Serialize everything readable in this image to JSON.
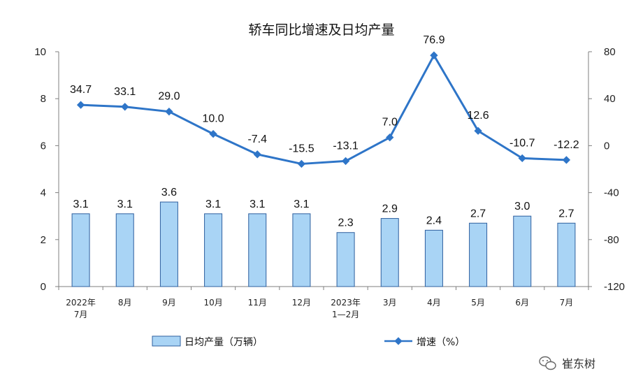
{
  "chart_data": {
    "type": "bar+line",
    "title": "轿车同比增速及日均产量",
    "categories": [
      [
        "2022年",
        "7月"
      ],
      [
        "8月"
      ],
      [
        "9月"
      ],
      [
        "10月"
      ],
      [
        "11月"
      ],
      [
        "12月"
      ],
      [
        "2023年",
        "1—2月"
      ],
      [
        "3月"
      ],
      [
        "4月"
      ],
      [
        "5月"
      ],
      [
        "6月"
      ],
      [
        "7月"
      ]
    ],
    "series": [
      {
        "name": "日均产量（万辆）",
        "type": "bar",
        "axis": "left",
        "color": "#a9d4f5",
        "border": "#2e5f9e",
        "values": [
          3.1,
          3.1,
          3.6,
          3.1,
          3.1,
          3.1,
          2.3,
          2.9,
          2.4,
          2.7,
          3.0,
          2.7
        ],
        "labels": [
          "3.1",
          "3.1",
          "3.6",
          "3.1",
          "3.1",
          "3.1",
          "2.3",
          "2.9",
          "2.4",
          "2.7",
          "3.0",
          "2.7"
        ]
      },
      {
        "name": "增速（%）",
        "type": "line",
        "axis": "right",
        "color": "#2e75c8",
        "values": [
          34.7,
          33.1,
          29.0,
          10.0,
          -7.4,
          -15.5,
          -13.1,
          7.0,
          76.9,
          12.6,
          -10.7,
          -12.2
        ],
        "labels": [
          "34.7",
          "33.1",
          "29.0",
          "10.0",
          "-7.4",
          "-15.5",
          "-13.1",
          "7.0",
          "76.9",
          "12.6",
          "-10.7",
          "-12.2"
        ]
      }
    ],
    "y_left": {
      "min": 0,
      "max": 10,
      "ticks": [
        "0",
        "2",
        "4",
        "6",
        "8",
        "10"
      ],
      "tick_values": [
        0,
        2,
        4,
        6,
        8,
        10
      ]
    },
    "y_right": {
      "min": -120,
      "max": 80,
      "ticks": [
        "-120",
        "-80",
        "-40",
        "0",
        "40",
        "80"
      ],
      "tick_values": [
        -120,
        -80,
        -40,
        0,
        40,
        80
      ]
    },
    "grid": false,
    "legend_position": "bottom"
  },
  "watermark": "崔东树"
}
